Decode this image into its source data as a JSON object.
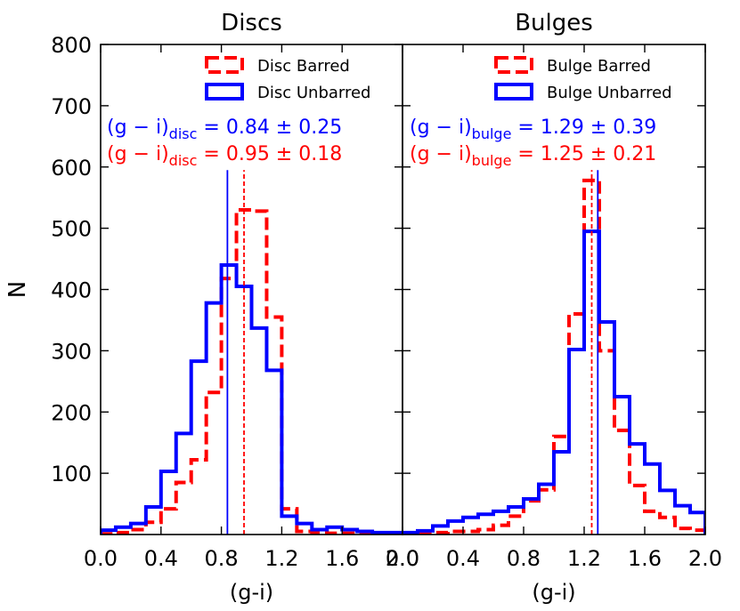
{
  "chart_data": [
    {
      "type": "histogram",
      "title": "Discs",
      "xlabel": "(g-i)",
      "ylabel": "N",
      "xlim": [
        0.0,
        2.0
      ],
      "ylim": [
        0,
        800
      ],
      "xticks": [
        "0.0",
        "0.4",
        "0.8",
        "1.2",
        "1.6",
        "2.0"
      ],
      "yticks": [
        "100",
        "200",
        "300",
        "400",
        "500",
        "600",
        "700",
        "800"
      ],
      "bin_edges": [
        0.0,
        0.1,
        0.2,
        0.3,
        0.4,
        0.5,
        0.6,
        0.7,
        0.8,
        0.9,
        1.0,
        1.1,
        1.2,
        1.3,
        1.4,
        1.5,
        1.6,
        1.7,
        1.8,
        1.9,
        2.0
      ],
      "legend": [
        {
          "label": "Disc Barred",
          "color": "#ff0000",
          "style": "dashed"
        },
        {
          "label": "Disc Unbarred",
          "color": "#0000ff",
          "style": "solid"
        }
      ],
      "series": [
        {
          "name": "Disc Barred",
          "color": "#ff0000",
          "style": "dashed",
          "values": [
            1,
            3,
            8,
            20,
            42,
            85,
            122,
            232,
            418,
            530,
            528,
            355,
            42,
            5,
            3,
            2,
            2,
            1,
            1,
            0
          ]
        },
        {
          "name": "Disc Unbarred",
          "color": "#0000ff",
          "style": "solid",
          "values": [
            7,
            12,
            18,
            45,
            103,
            165,
            283,
            378,
            440,
            405,
            337,
            268,
            30,
            18,
            8,
            12,
            8,
            5,
            3,
            3
          ]
        }
      ],
      "annotations": [
        {
          "prefix": "(g − i)",
          "sub": "disc",
          "value": " = 0.84 ± 0.25",
          "color": "#0000ff"
        },
        {
          "prefix": "(g − i)",
          "sub": "disc",
          "value": " = 0.95 ± 0.18",
          "color": "#ff0000"
        }
      ],
      "mean_lines": [
        {
          "x": 0.84,
          "color": "#0000ff",
          "style": "solid"
        },
        {
          "x": 0.95,
          "color": "#ff0000",
          "style": "dashed"
        }
      ]
    },
    {
      "type": "histogram",
      "title": "Bulges",
      "xlabel": "(g-i)",
      "ylabel": "",
      "xlim": [
        0.0,
        2.0
      ],
      "ylim": [
        0,
        800
      ],
      "xticks": [
        "0.0",
        "0.4",
        "0.8",
        "1.2",
        "1.6",
        "2.0"
      ],
      "yticks": [],
      "bin_edges": [
        0.0,
        0.1,
        0.2,
        0.3,
        0.4,
        0.5,
        0.6,
        0.7,
        0.8,
        0.9,
        1.0,
        1.1,
        1.2,
        1.3,
        1.4,
        1.5,
        1.6,
        1.7,
        1.8,
        1.9,
        2.0
      ],
      "legend": [
        {
          "label": "Bulge Barred",
          "color": "#ff0000",
          "style": "dashed"
        },
        {
          "label": "Bulge Unbarred",
          "color": "#0000ff",
          "style": "solid"
        }
      ],
      "series": [
        {
          "name": "Bulge Barred",
          "color": "#ff0000",
          "style": "dashed",
          "values": [
            1,
            2,
            3,
            5,
            5,
            8,
            15,
            30,
            55,
            73,
            160,
            360,
            578,
            300,
            170,
            80,
            38,
            28,
            10,
            7
          ]
        },
        {
          "name": "Bulge Unbarred",
          "color": "#0000ff",
          "style": "solid",
          "values": [
            3,
            6,
            14,
            22,
            28,
            33,
            38,
            45,
            58,
            82,
            135,
            302,
            495,
            347,
            225,
            148,
            115,
            72,
            47,
            36
          ]
        }
      ],
      "annotations": [
        {
          "prefix": "(g − i)",
          "sub": "bulge",
          "value": " = 1.29 ± 0.39",
          "color": "#0000ff"
        },
        {
          "prefix": "(g − i)",
          "sub": "bulge",
          "value": " = 1.25 ± 0.21",
          "color": "#ff0000"
        }
      ],
      "mean_lines": [
        {
          "x": 1.29,
          "color": "#0000ff",
          "style": "solid"
        },
        {
          "x": 1.25,
          "color": "#ff0000",
          "style": "dashed"
        }
      ]
    }
  ]
}
